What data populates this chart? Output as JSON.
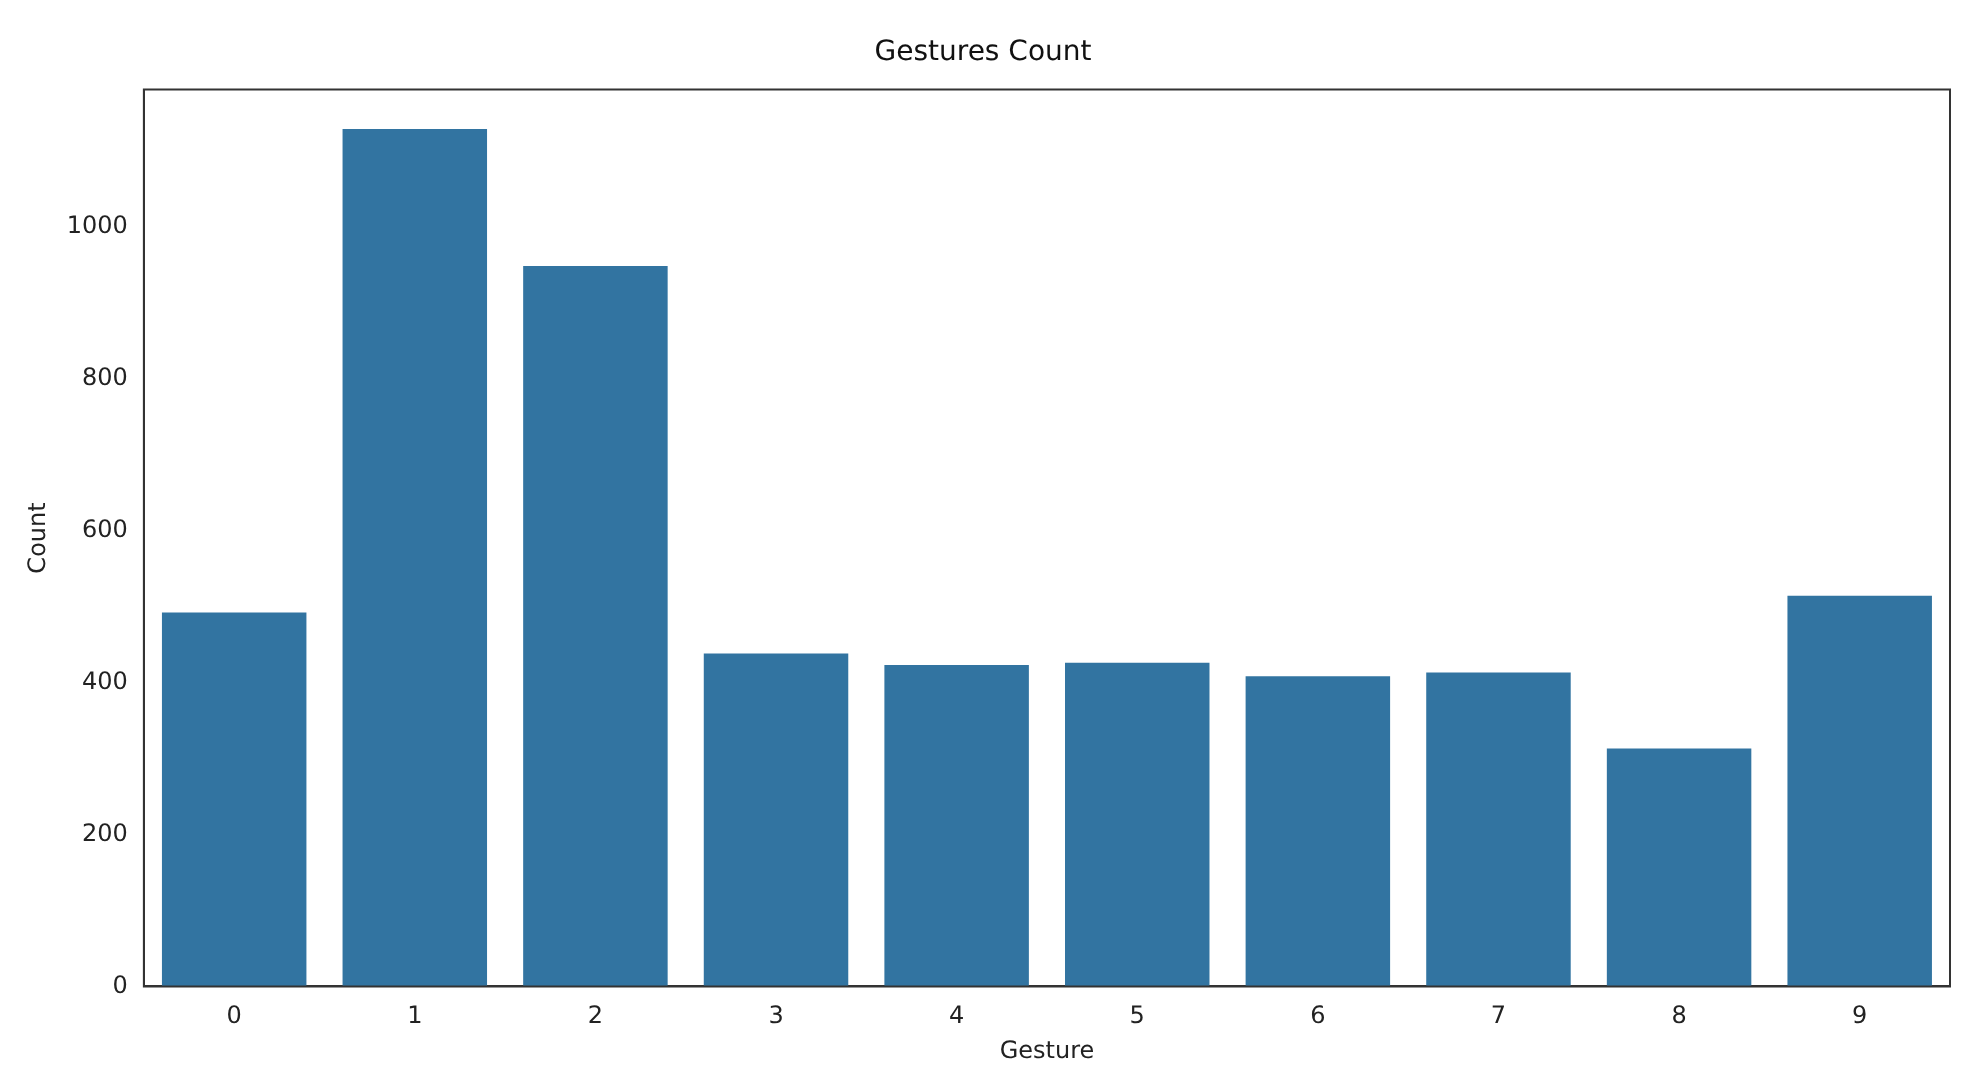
{
  "chart_data": {
    "type": "bar",
    "title": "Gestures Count",
    "xlabel": "Gesture",
    "ylabel": "Count",
    "categories": [
      "0",
      "1",
      "2",
      "3",
      "4",
      "5",
      "6",
      "7",
      "8",
      "9"
    ],
    "values": [
      492,
      1128,
      948,
      438,
      423,
      426,
      408,
      413,
      313,
      514
    ],
    "color": "#3274a1",
    "ylim": [
      0,
      1180
    ],
    "yticks": [
      0,
      200,
      400,
      600,
      800,
      1000
    ],
    "grid": false
  }
}
